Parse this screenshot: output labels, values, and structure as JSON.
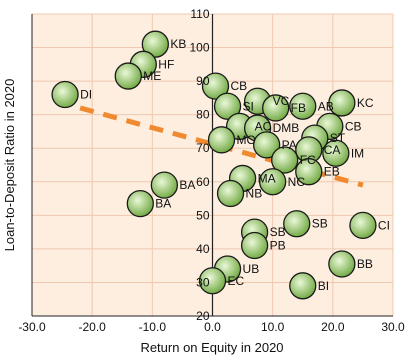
{
  "chart_data": {
    "type": "scatter",
    "title": "",
    "xlabel": "Return on Equity in  2020",
    "ylabel": "Loan-to-Deposit Ratio in 2020",
    "xlim": [
      -30,
      30
    ],
    "ylim": [
      20,
      110
    ],
    "xticks": [
      -30,
      -20,
      -10,
      0,
      10,
      20,
      30
    ],
    "xtick_labels": [
      "-30.0",
      "-20.0",
      "-10.0",
      "0.0",
      "10.0",
      "20.0",
      "30.0"
    ],
    "yticks": [
      20,
      30,
      40,
      50,
      60,
      70,
      80,
      90,
      100,
      110
    ],
    "ytick_labels": [
      "20",
      "30",
      "40",
      "50",
      "60",
      "70",
      "80",
      "90",
      "100",
      "110"
    ],
    "grid": true,
    "legend": "none",
    "colors": {
      "plot_background": "#fdeee0",
      "grid": "#f0c8b0",
      "bubble_fill_center": "#eaf8d8",
      "bubble_fill_edge": "#6fa840",
      "bubble_stroke": "#1a1a1a",
      "trend_line": "#f08a30"
    },
    "trend_line": {
      "style": "dashed",
      "points": [
        [
          -22,
          82
        ],
        [
          25,
          59
        ]
      ]
    },
    "points": [
      {
        "label": "KB",
        "x": -9.5,
        "y": 101
      },
      {
        "label": "HF",
        "x": -11.5,
        "y": 95
      },
      {
        "label": "ME",
        "x": -14,
        "y": 91.5
      },
      {
        "label": "DI",
        "x": -24.5,
        "y": 86
      },
      {
        "label": "CB",
        "x": 0.5,
        "y": 88.5
      },
      {
        "label": "SI",
        "x": 2.5,
        "y": 82.5
      },
      {
        "label": "VC",
        "x": 7.5,
        "y": 84
      },
      {
        "label": "FB",
        "x": 10.5,
        "y": 82
      },
      {
        "label": "AB",
        "x": 15,
        "y": 82.5
      },
      {
        "label": "KC",
        "x": 21.5,
        "y": 83.5
      },
      {
        "label": "AC",
        "x": 4.5,
        "y": 76.5
      },
      {
        "label": "DMB",
        "x": 7.5,
        "y": 76
      },
      {
        "label": "CB",
        "x": 19.5,
        "y": 76.5
      },
      {
        "label": "MO",
        "x": 1.5,
        "y": 72.5
      },
      {
        "label": "PA",
        "x": 9,
        "y": 71
      },
      {
        "label": "ST",
        "x": 17,
        "y": 73
      },
      {
        "label": "CA",
        "x": 16,
        "y": 69.5
      },
      {
        "label": "IM",
        "x": 20.5,
        "y": 68.5
      },
      {
        "label": "FC",
        "x": 12,
        "y": 66.5
      },
      {
        "label": "EB",
        "x": 16,
        "y": 63
      },
      {
        "label": "NC",
        "x": 10,
        "y": 60
      },
      {
        "label": "MA",
        "x": 5,
        "y": 61
      },
      {
        "label": "NB",
        "x": 3,
        "y": 56.5
      },
      {
        "label": "BA",
        "x": -8,
        "y": 59
      },
      {
        "label": "BA",
        "x": -12,
        "y": 53.5
      },
      {
        "label": "SB",
        "x": 14,
        "y": 47.5
      },
      {
        "label": "CI",
        "x": 25,
        "y": 47
      },
      {
        "label": "SB",
        "x": 7,
        "y": 45
      },
      {
        "label": "PB",
        "x": 7,
        "y": 41
      },
      {
        "label": "UB",
        "x": 2.5,
        "y": 34
      },
      {
        "label": "BB",
        "x": 21.5,
        "y": 35.5
      },
      {
        "label": "EC",
        "x": 0,
        "y": 30.5
      },
      {
        "label": "BI",
        "x": 15,
        "y": 29
      }
    ]
  }
}
